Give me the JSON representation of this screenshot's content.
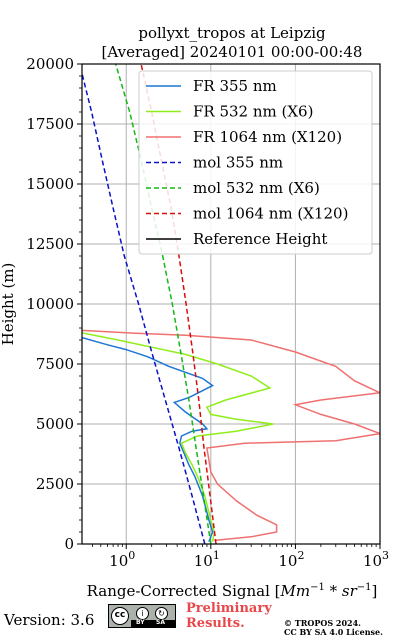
{
  "chart_data": {
    "type": "line",
    "title": "pollyxt_tropos at Leipzig",
    "subtitle": "[Averaged] 20240101 00:00-00:48",
    "xlabel": "Range-Corrected Signal [Mm⁻¹ * sr⁻¹]",
    "ylabel": "Height (m)",
    "xscale": "log",
    "xlim": [
      0.3,
      1000
    ],
    "ylim": [
      0,
      20000
    ],
    "grid": true,
    "legend_position": "top-right",
    "xticks": [
      {
        "value": 1,
        "base": "10",
        "exp": "0"
      },
      {
        "value": 10,
        "base": "10",
        "exp": "1"
      },
      {
        "value": 100,
        "base": "10",
        "exp": "2"
      },
      {
        "value": 1000,
        "base": "10",
        "exp": "3"
      }
    ],
    "yticks": [
      {
        "value": 0,
        "label": "0"
      },
      {
        "value": 2500,
        "label": "2500"
      },
      {
        "value": 5000,
        "label": "5000"
      },
      {
        "value": 7500,
        "label": "7500"
      },
      {
        "value": 10000,
        "label": "10000"
      },
      {
        "value": 12500,
        "label": "12500"
      },
      {
        "value": 15000,
        "label": "15000"
      },
      {
        "value": 17500,
        "label": "17500"
      },
      {
        "value": 20000,
        "label": "20000"
      }
    ],
    "series": [
      {
        "name": "FR 355 nm",
        "color": "#1f77d4",
        "style": "solid",
        "points": [
          [
            9.5,
            100
          ],
          [
            10.5,
            500
          ],
          [
            9.5,
            1000
          ],
          [
            8.0,
            2000
          ],
          [
            6.5,
            2800
          ],
          [
            5.5,
            3300
          ],
          [
            4.8,
            3800
          ],
          [
            4.3,
            4200
          ],
          [
            4.5,
            4500
          ],
          [
            6.0,
            4700
          ],
          [
            9.0,
            4800
          ],
          [
            8.0,
            5000
          ],
          [
            5.0,
            5500
          ],
          [
            3.7,
            5900
          ],
          [
            5.5,
            6100
          ],
          [
            10.5,
            6600
          ],
          [
            8.0,
            6900
          ],
          [
            3.2,
            7400
          ],
          [
            1.8,
            7800
          ],
          [
            1.0,
            8100
          ],
          [
            0.6,
            8300
          ],
          [
            0.3,
            8600
          ]
        ]
      },
      {
        "name": "FR 532 nm (X6)",
        "color": "#8fee1a",
        "style": "solid",
        "points": [
          [
            10.5,
            100
          ],
          [
            11.0,
            500
          ],
          [
            10.0,
            1000
          ],
          [
            8.5,
            2000
          ],
          [
            7.0,
            2800
          ],
          [
            6.0,
            3300
          ],
          [
            5.0,
            3800
          ],
          [
            4.5,
            4200
          ],
          [
            7.0,
            4500
          ],
          [
            20,
            4700
          ],
          [
            55,
            5000
          ],
          [
            20,
            5200
          ],
          [
            10,
            5400
          ],
          [
            9,
            5700
          ],
          [
            15,
            6000
          ],
          [
            50,
            6500
          ],
          [
            30,
            7000
          ],
          [
            12,
            7500
          ],
          [
            5,
            7900
          ],
          [
            2,
            8200
          ],
          [
            0.8,
            8500
          ],
          [
            0.3,
            8800
          ]
        ]
      },
      {
        "name": "FR 1064 nm (X120)",
        "color": "#f07070",
        "style": "solid",
        "points": [
          [
            11.0,
            150
          ],
          [
            30,
            300
          ],
          [
            60,
            500
          ],
          [
            60,
            800
          ],
          [
            35,
            1200
          ],
          [
            20,
            1800
          ],
          [
            12,
            2500
          ],
          [
            10,
            3000
          ],
          [
            9.5,
            3500
          ],
          [
            9,
            4000
          ],
          [
            25,
            4200
          ],
          [
            300,
            4300
          ],
          [
            1000,
            4600
          ],
          [
            500,
            5000
          ],
          [
            200,
            5400
          ],
          [
            100,
            5800
          ],
          [
            200,
            6000
          ],
          [
            1000,
            6300
          ],
          [
            500,
            6800
          ],
          [
            300,
            7400
          ],
          [
            100,
            8000
          ],
          [
            30,
            8500
          ],
          [
            5,
            8700
          ],
          [
            1,
            8800
          ],
          [
            0.3,
            8900
          ]
        ]
      },
      {
        "name": "mol 355 nm",
        "color": "#0a12c8",
        "style": "dashed",
        "points": [
          [
            8.5,
            0
          ],
          [
            6.0,
            2000
          ],
          [
            4.2,
            4000
          ],
          [
            2.9,
            6000
          ],
          [
            2.0,
            8000
          ],
          [
            1.4,
            10000
          ],
          [
            0.95,
            12000
          ],
          [
            0.7,
            14000
          ],
          [
            0.52,
            16000
          ],
          [
            0.39,
            18000
          ],
          [
            0.3,
            19600
          ]
        ]
      },
      {
        "name": "mol 532 nm (X6)",
        "color": "#14b814",
        "style": "dashed",
        "points": [
          [
            10.0,
            0
          ],
          [
            8.2,
            2000
          ],
          [
            6.7,
            4000
          ],
          [
            5.5,
            6000
          ],
          [
            4.4,
            8000
          ],
          [
            3.5,
            10000
          ],
          [
            2.7,
            12000
          ],
          [
            2.0,
            14000
          ],
          [
            1.5,
            16000
          ],
          [
            1.1,
            18000
          ],
          [
            0.75,
            20000
          ]
        ]
      },
      {
        "name": "mol 1064 nm (X120)",
        "color": "#d80c0c",
        "style": "dashed",
        "points": [
          [
            11.5,
            0
          ],
          [
            9.8,
            2000
          ],
          [
            8.3,
            4000
          ],
          [
            7.2,
            6000
          ],
          [
            6.1,
            8000
          ],
          [
            5.1,
            10000
          ],
          [
            4.2,
            12000
          ],
          [
            3.4,
            14000
          ],
          [
            2.6,
            16000
          ],
          [
            2.0,
            18000
          ],
          [
            1.5,
            20000
          ]
        ]
      },
      {
        "name": "Reference Height",
        "color": "#000000",
        "style": "solid",
        "points": []
      }
    ]
  },
  "footer": {
    "version": "Version: 3.6",
    "license_badge": {
      "cc": "cc",
      "by": "BY",
      "sa": "SA"
    },
    "preliminary_line1": "Preliminary",
    "preliminary_line2": "Results.",
    "copyright_line1": "© TROPOS 2024.",
    "copyright_line2": "CC BY SA 4.0 License."
  }
}
